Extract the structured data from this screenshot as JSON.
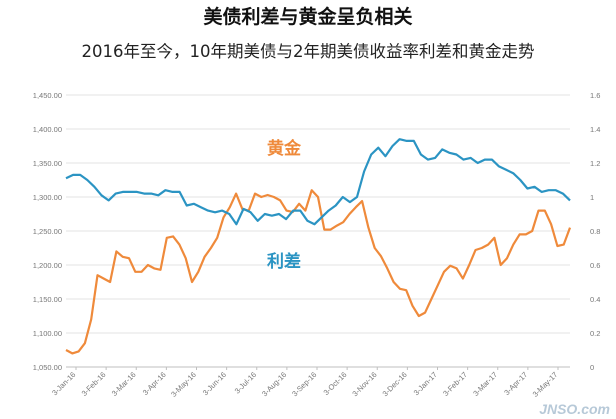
{
  "chart_data": {
    "type": "line",
    "title": "美债利差与黄金呈负相关",
    "subtitle": "2016年至今，10年期美债与2年期美债收益率利差和黄金走势",
    "x_tick_labels": [
      "3-Jan-16",
      "3-Feb-16",
      "3-Mar-16",
      "3-Apr-16",
      "3-May-16",
      "3-Jun-16",
      "3-Jul-16",
      "3-Aug-16",
      "3-Sep-16",
      "3-Oct-16",
      "3-Nov-16",
      "3-Dec-16",
      "3-Jan-17",
      "3-Feb-17",
      "3-Mar-17",
      "3-Apr-17",
      "3-May-17"
    ],
    "left_axis": {
      "min": 1050,
      "max": 1450,
      "ticks": [
        "1,050.00",
        "1,100.00",
        "1,150.00",
        "1,200.00",
        "1,250.00",
        "1,300.00",
        "1,350.00",
        "1,400.00",
        "1,450.00"
      ]
    },
    "right_axis": {
      "min": 0,
      "max": 1.6,
      "ticks": [
        "0",
        "0.2",
        "0.4",
        "0.6",
        "0.8",
        "1",
        "1.2",
        "1.4",
        "1.6"
      ]
    },
    "series": [
      {
        "name": "黄金",
        "axis": "left",
        "color": "#ef8a3b",
        "values": [
          1075,
          1070,
          1073,
          1085,
          1120,
          1185,
          1180,
          1175,
          1220,
          1212,
          1210,
          1190,
          1190,
          1200,
          1195,
          1193,
          1240,
          1242,
          1230,
          1210,
          1175,
          1190,
          1212,
          1225,
          1240,
          1270,
          1285,
          1305,
          1282,
          1280,
          1305,
          1300,
          1303,
          1300,
          1295,
          1280,
          1278,
          1290,
          1280,
          1310,
          1300,
          1252,
          1252,
          1258,
          1263,
          1275,
          1285,
          1294,
          1255,
          1225,
          1213,
          1195,
          1175,
          1165,
          1163,
          1140,
          1125,
          1130,
          1150,
          1170,
          1190,
          1199,
          1195,
          1180,
          1200,
          1222,
          1225,
          1230,
          1240,
          1200,
          1210,
          1230,
          1245,
          1245,
          1250,
          1280,
          1280,
          1260,
          1228,
          1230,
          1255
        ]
      },
      {
        "name": "利差",
        "axis": "right",
        "color": "#2b94c3",
        "values": [
          1.11,
          1.13,
          1.13,
          1.1,
          1.06,
          1.01,
          0.98,
          1.02,
          1.03,
          1.03,
          1.03,
          1.02,
          1.02,
          1.01,
          1.04,
          1.03,
          1.03,
          0.95,
          0.96,
          0.94,
          0.92,
          0.91,
          0.92,
          0.9,
          0.84,
          0.93,
          0.91,
          0.86,
          0.9,
          0.89,
          0.9,
          0.87,
          0.92,
          0.92,
          0.86,
          0.84,
          0.88,
          0.92,
          0.95,
          1.0,
          0.97,
          1.0,
          1.15,
          1.25,
          1.29,
          1.24,
          1.3,
          1.34,
          1.33,
          1.33,
          1.25,
          1.22,
          1.23,
          1.28,
          1.26,
          1.25,
          1.22,
          1.23,
          1.2,
          1.22,
          1.22,
          1.18,
          1.16,
          1.14,
          1.1,
          1.05,
          1.06,
          1.03,
          1.04,
          1.04,
          1.02,
          0.98
        ]
      }
    ],
    "annotations": [
      {
        "text": "黄金",
        "color": "#ef8a3b"
      },
      {
        "text": "利差",
        "color": "#2b94c3"
      }
    ],
    "grid": true
  },
  "watermark": "JNSO.com"
}
